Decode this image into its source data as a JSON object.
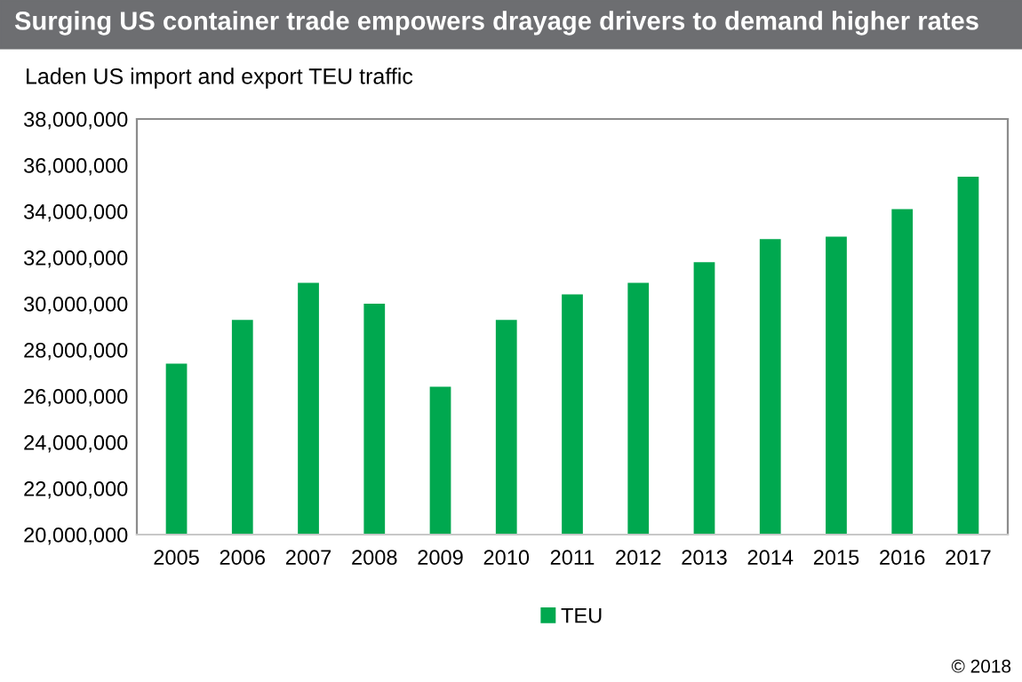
{
  "chart_data": {
    "type": "bar",
    "title": "Surging US container trade empowers drayage drivers to demand higher rates",
    "subtitle": "Laden US import and export TEU traffic",
    "categories": [
      "2005",
      "2006",
      "2007",
      "2008",
      "2009",
      "2010",
      "2011",
      "2012",
      "2013",
      "2014",
      "2015",
      "2016",
      "2017"
    ],
    "series": [
      {
        "name": "TEU",
        "color": "#00a84f",
        "values": [
          27400000,
          29300000,
          30900000,
          30000000,
          26400000,
          29300000,
          30400000,
          30900000,
          31800000,
          32800000,
          32900000,
          34100000,
          35500000
        ]
      }
    ],
    "ylim": [
      20000000,
      38000000
    ],
    "yticks": [
      {
        "value": 20000000,
        "label": "20,000,000"
      },
      {
        "value": 22000000,
        "label": "22,000,000"
      },
      {
        "value": 24000000,
        "label": "24,000,000"
      },
      {
        "value": 26000000,
        "label": "26,000,000"
      },
      {
        "value": 28000000,
        "label": "28,000,000"
      },
      {
        "value": 30000000,
        "label": "30,000,000"
      },
      {
        "value": 32000000,
        "label": "32,000,000"
      },
      {
        "value": 34000000,
        "label": "34,000,000"
      },
      {
        "value": 36000000,
        "label": "36,000,000"
      },
      {
        "value": 38000000,
        "label": "38,000,000"
      }
    ],
    "grid": false,
    "legend": "bottom",
    "annotations": [
      "© 2018"
    ]
  }
}
